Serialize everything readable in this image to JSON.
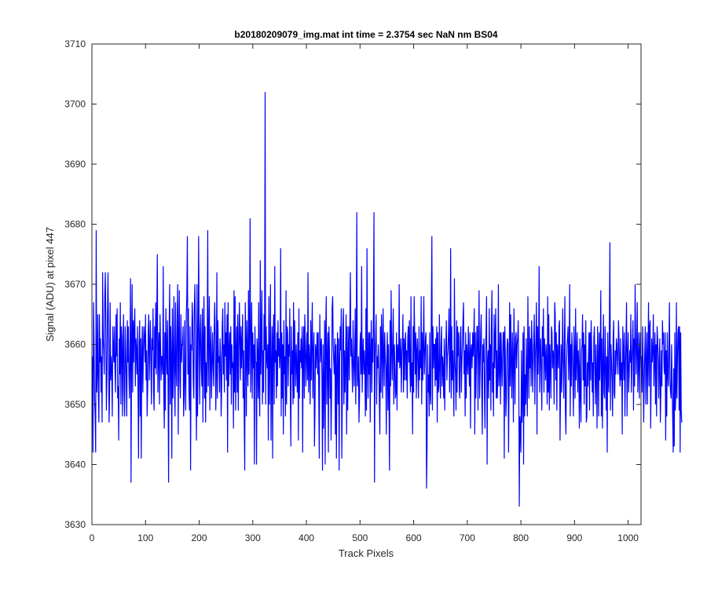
{
  "chart_data": {
    "type": "line",
    "title": "b20180209079_img.mat int time = 2.3754 sec  NaN nm BS04",
    "xlabel": "Track Pixels",
    "ylabel": "Signal (ADU) at pixel 447",
    "xlim": [
      0,
      1024
    ],
    "ylim": [
      3630,
      3710
    ],
    "xticks": [
      0,
      100,
      200,
      300,
      400,
      500,
      600,
      700,
      800,
      900,
      1000
    ],
    "yticks": [
      3630,
      3640,
      3650,
      3660,
      3670,
      3680,
      3690,
      3700,
      3710
    ],
    "grid": false,
    "line_color": "#0000ff",
    "series": [
      {
        "x_start": 1,
        "x_step": 1,
        "values": [
          3658,
          3642,
          3667,
          3660,
          3651,
          3648,
          3642,
          3679,
          3652,
          3655,
          3665,
          3652,
          3647,
          3665,
          3657,
          3661,
          3652,
          3658,
          3647,
          3672,
          3661,
          3659,
          3655,
          3668,
          3672,
          3663,
          3649,
          3654,
          3665,
          3672,
          3661,
          3647,
          3652,
          3667,
          3654,
          3658,
          3656,
          3648,
          3663,
          3659,
          3657,
          3663,
          3656,
          3652,
          3665,
          3658,
          3666,
          3651,
          3653,
          3644,
          3661,
          3655,
          3667,
          3650,
          3663,
          3661,
          3648,
          3659,
          3665,
          3652,
          3648,
          3663,
          3659,
          3654,
          3648,
          3664,
          3657,
          3663,
          3655,
          3651,
          3659,
          3671,
          3637,
          3660,
          3670,
          3652,
          3664,
          3657,
          3663,
          3666,
          3653,
          3661,
          3659,
          3655,
          3663,
          3652,
          3641,
          3660,
          3664,
          3648,
          3661,
          3641,
          3658,
          3663,
          3652,
          3659,
          3663,
          3661,
          3657,
          3665,
          3654,
          3659,
          3648,
          3653,
          3662,
          3665,
          3654,
          3660,
          3664,
          3657,
          3650,
          3661,
          3659,
          3666,
          3652,
          3649,
          3663,
          3656,
          3667,
          3655,
          3665,
          3675,
          3652,
          3659,
          3662,
          3650,
          3665,
          3660,
          3654,
          3658,
          3658,
          3655,
          3673,
          3652,
          3646,
          3662,
          3649,
          3666,
          3659,
          3655,
          3664,
          3653,
          3637,
          3662,
          3670,
          3650,
          3663,
          3658,
          3641,
          3666,
          3651,
          3657,
          3668,
          3654,
          3648,
          3667,
          3656,
          3653,
          3664,
          3670,
          3645,
          3662,
          3669,
          3654,
          3651,
          3665,
          3657,
          3660,
          3660,
          3663,
          3648,
          3651,
          3664,
          3654,
          3649,
          3665,
          3668,
          3678,
          3655,
          3666,
          3652,
          3649,
          3663,
          3639,
          3660,
          3659,
          3667,
          3664,
          3654,
          3651,
          3666,
          3670,
          3663,
          3653,
          3644,
          3670,
          3648,
          3659,
          3678,
          3662,
          3650,
          3662,
          3665,
          3656,
          3653,
          3666,
          3647,
          3661,
          3668,
          3651,
          3663,
          3647,
          3657,
          3652,
          3660,
          3679,
          3653,
          3661,
          3668,
          3649,
          3659,
          3663,
          3651,
          3656,
          3662,
          3657,
          3653,
          3662,
          3667,
          3661,
          3649,
          3655,
          3672,
          3651,
          3664,
          3657,
          3658,
          3652,
          3661,
          3658,
          3648,
          3653,
          3663,
          3666,
          3655,
          3660,
          3652,
          3667,
          3658,
          3662,
          3654,
          3665,
          3642,
          3667,
          3653,
          3659,
          3662,
          3655,
          3663,
          3650,
          3660,
          3656,
          3657,
          3646,
          3669,
          3652,
          3668,
          3649,
          3659,
          3663,
          3652,
          3665,
          3649,
          3659,
          3667,
          3661,
          3654,
          3663,
          3656,
          3660,
          3665,
          3651,
          3659,
          3648,
          3639,
          3667,
          3661,
          3648,
          3664,
          3658,
          3653,
          3669,
          3655,
          3663,
          3681,
          3652,
          3659,
          3667,
          3651,
          3662,
          3656,
          3660,
          3640,
          3663,
          3657,
          3657,
          3640,
          3661,
          3658,
          3651,
          3667,
          3653,
          3648,
          3674,
          3655,
          3661,
          3669,
          3650,
          3659,
          3652,
          3665,
          3659,
          3702,
          3650,
          3663,
          3658,
          3656,
          3660,
          3644,
          3668,
          3650,
          3658,
          3670,
          3644,
          3656,
          3663,
          3641,
          3661,
          3665,
          3650,
          3673,
          3657,
          3659,
          3651,
          3662,
          3653,
          3664,
          3658,
          3661,
          3656,
          3658,
          3676,
          3648,
          3662,
          3651,
          3660,
          3645,
          3664,
          3655,
          3658,
          3648,
          3669,
          3650,
          3663,
          3662,
          3653,
          3660,
          3658,
          3666,
          3652,
          3643,
          3663,
          3655,
          3659,
          3650,
          3667,
          3651,
          3664,
          3658,
          3653,
          3660,
          3656,
          3652,
          3662,
          3644,
          3666,
          3651,
          3659,
          3657,
          3661,
          3656,
          3663,
          3642,
          3659,
          3663,
          3651,
          3665,
          3660,
          3653,
          3658,
          3662,
          3654,
          3672,
          3652,
          3660,
          3657,
          3650,
          3664,
          3654,
          3661,
          3667,
          3651,
          3658,
          3662,
          3643,
          3649,
          3660,
          3656,
          3659,
          3662,
          3655,
          3662,
          3652,
          3641,
          3665,
          3657,
          3660,
          3661,
          3654,
          3639,
          3660,
          3646,
          3653,
          3664,
          3640,
          3662,
          3668,
          3650,
          3657,
          3662,
          3642,
          3663,
          3659,
          3651,
          3656,
          3644,
          3652,
          3666,
          3668,
          3660,
          3657,
          3655,
          3661,
          3645,
          3660,
          3641,
          3656,
          3662,
          3650,
          3661,
          3639,
          3657,
          3663,
          3659,
          3666,
          3641,
          3651,
          3663,
          3666,
          3650,
          3659,
          3652,
          3657,
          3665,
          3645,
          3663,
          3649,
          3658,
          3663,
          3654,
          3663,
          3672,
          3658,
          3661,
          3656,
          3652,
          3664,
          3658,
          3653,
          3657,
          3666,
          3650,
          3661,
          3682,
          3653,
          3655,
          3658,
          3647,
          3651,
          3660,
          3662,
          3655,
          3673,
          3652,
          3658,
          3661,
          3655,
          3659,
          3656,
          3648,
          3666,
          3649,
          3676,
          3657,
          3651,
          3662,
          3655,
          3662,
          3647,
          3659,
          3664,
          3652,
          3661,
          3657,
          3665,
          3682,
          3637,
          3658,
          3661,
          3665,
          3650,
          3658,
          3656,
          3660,
          3656,
          3651,
          3645,
          3663,
          3652,
          3665,
          3660,
          3651,
          3666,
          3659,
          3653,
          3662,
          3658,
          3656,
          3645,
          3658,
          3662,
          3649,
          3660,
          3651,
          3639,
          3664,
          3653,
          3669,
          3659,
          3654,
          3661,
          3666,
          3650,
          3660,
          3656,
          3651,
          3652,
          3662,
          3649,
          3660,
          3658,
          3657,
          3670,
          3656,
          3657,
          3661,
          3652,
          3658,
          3660,
          3665,
          3652,
          3661,
          3654,
          3660,
          3662,
          3654,
          3659,
          3651,
          3661,
          3663,
          3657,
          3664,
          3656,
          3652,
          3668,
          3653,
          3657,
          3645,
          3663,
          3652,
          3668,
          3661,
          3655,
          3662,
          3651,
          3659,
          3661,
          3656,
          3651,
          3663,
          3654,
          3659,
          3656,
          3668,
          3650,
          3662,
          3654,
          3660,
          3668,
          3655,
          3658,
          3661,
          3662,
          3636,
          3643,
          3660,
          3652,
          3655,
          3648,
          3662,
          3652,
          3650,
          3666,
          3678,
          3649,
          3663,
          3656,
          3660,
          3660,
          3653,
          3661,
          3654,
          3663,
          3647,
          3662,
          3652,
          3653,
          3665,
          3656,
          3651,
          3660,
          3663,
          3653,
          3658,
          3656,
          3651,
          3661,
          3649,
          3658,
          3660,
          3664,
          3654,
          3658,
          3659,
          3662,
          3666,
          3652,
          3658,
          3676,
          3651,
          3663,
          3654,
          3659,
          3654,
          3648,
          3671,
          3657,
          3655,
          3649,
          3664,
          3652,
          3663,
          3658,
          3662,
          3653,
          3651,
          3661,
          3663,
          3652,
          3657,
          3660,
          3664,
          3667,
          3655,
          3659,
          3648,
          3662,
          3651,
          3660,
          3658,
          3655,
          3663,
          3657,
          3653,
          3662,
          3646,
          3659,
          3660,
          3656,
          3662,
          3658,
          3661,
          3666,
          3645,
          3662,
          3651,
          3657,
          3663,
          3663,
          3649,
          3660,
          3669,
          3651,
          3656,
          3662,
          3665,
          3653,
          3645,
          3660,
          3657,
          3661,
          3652,
          3646,
          3659,
          3662,
          3668,
          3640,
          3657,
          3659,
          3651,
          3666,
          3654,
          3660,
          3649,
          3663,
          3669,
          3652,
          3657,
          3648,
          3665,
          3656,
          3661,
          3666,
          3651,
          3659,
          3651,
          3655,
          3670,
          3653,
          3656,
          3662,
          3650,
          3662,
          3657,
          3653,
          3658,
          3662,
          3662,
          3641,
          3663,
          3658,
          3648,
          3651,
          3659,
          3661,
          3660,
          3642,
          3654,
          3667,
          3653,
          3665,
          3657,
          3651,
          3662,
          3657,
          3647,
          3666,
          3659,
          3650,
          3661,
          3662,
          3656,
          3660,
          3661,
          3664,
          3656,
          3633,
          3648,
          3646,
          3642,
          3659,
          3647,
          3651,
          3662,
          3640,
          3663,
          3648,
          3655,
          3650,
          3661,
          3654,
          3648,
          3668,
          3658,
          3651,
          3663,
          3656,
          3661,
          3653,
          3664,
          3660,
          3652,
          3657,
          3661,
          3665,
          3650,
          3658,
          3661,
          3667,
          3645,
          3663,
          3655,
          3660,
          3673,
          3652,
          3658,
          3661,
          3655,
          3649,
          3663,
          3658,
          3666,
          3652,
          3661,
          3658,
          3654,
          3660,
          3656,
          3650,
          3668,
          3652,
          3665,
          3649,
          3660,
          3657,
          3651,
          3663,
          3662,
          3656,
          3659,
          3658,
          3650,
          3667,
          3665,
          3654,
          3662,
          3649,
          3660,
          3658,
          3656,
          3663,
          3664,
          3644,
          3653,
          3660,
          3652,
          3658,
          3666,
          3657,
          3651,
          3659,
          3668,
          3649,
          3645,
          3656,
          3660,
          3661,
          3663,
          3654,
          3658,
          3670,
          3648,
          3660,
          3653,
          3662,
          3659,
          3654,
          3648,
          3663,
          3658,
          3651,
          3666,
          3654,
          3658,
          3662,
          3652,
          3659,
          3656,
          3646,
          3661,
          3652,
          3647,
          3659,
          3660,
          3665,
          3654,
          3662,
          3650,
          3660,
          3653,
          3664,
          3647,
          3648,
          3657,
          3653,
          3658,
          3662,
          3649,
          3662,
          3654,
          3664,
          3659,
          3652,
          3657,
          3648,
          3661,
          3663,
          3656,
          3650,
          3660,
          3655,
          3646,
          3663,
          3658,
          3648,
          3662,
          3654,
          3659,
          3669,
          3648,
          3661,
          3646,
          3656,
          3665,
          3652,
          3651,
          3663,
          3657,
          3649,
          3658,
          3642,
          3662,
          3654,
          3652,
          3663,
          3677,
          3649,
          3660,
          3657,
          3654,
          3648,
          3661,
          3664,
          3652,
          3651,
          3659,
          3655,
          3661,
          3660,
          3657,
          3655,
          3664,
          3661,
          3655,
          3653,
          3661,
          3654,
          3657,
          3645,
          3663,
          3659,
          3654,
          3662,
          3648,
          3656,
          3661,
          3667,
          3648,
          3658,
          3662,
          3652,
          3655,
          3659,
          3657,
          3665,
          3652,
          3657,
          3660,
          3664,
          3649,
          3661,
          3653,
          3670,
          3661,
          3655,
          3660,
          3667,
          3652,
          3657,
          3662,
          3651,
          3659,
          3662,
          3656,
          3658,
          3652,
          3663,
          3657,
          3647,
          3654,
          3659,
          3663,
          3650,
          3657,
          3662,
          3650,
          3658,
          3667,
          3653,
          3663,
          3664,
          3646,
          3655,
          3661,
          3657,
          3659,
          3665,
          3653,
          3658,
          3662,
          3650,
          3660,
          3648,
          3663,
          3661,
          3658,
          3651,
          3657,
          3661,
          3647,
          3652,
          3659,
          3653,
          3664,
          3660,
          3662,
          3656,
          3655,
          3662,
          3644,
          3659,
          3648,
          3662,
          3655,
          3653,
          3659,
          3667,
          3654,
          3652,
          3651,
          3660,
          3654,
          3648,
          3642,
          3656,
          3643,
          3662,
          3649,
          3652,
          3667,
          3651,
          3658,
          3662,
          3663,
          3649,
          3663,
          3642,
          3662,
          3649,
          3647
        ]
      }
    ]
  }
}
